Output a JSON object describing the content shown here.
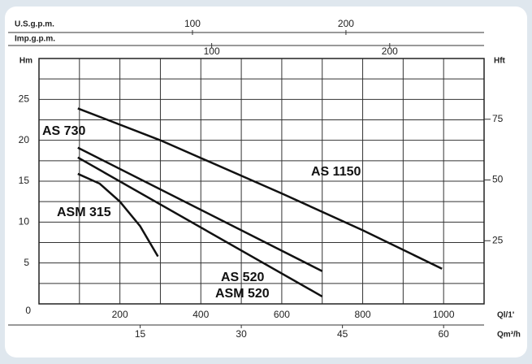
{
  "chart_data": {
    "type": "line",
    "series": [
      {
        "name": "AS 1150",
        "color": "#111111",
        "x": [
          96,
          300,
          600,
          800,
          996
        ],
        "values": [
          23.9,
          20.0,
          13.5,
          9.0,
          4.3
        ]
      },
      {
        "name": "AS 730",
        "color": "#111111",
        "x": [
          96,
          700
        ],
        "values": [
          19.1,
          4.0
        ]
      },
      {
        "name": "AS 520",
        "color": "#111111",
        "x": [
          96,
          700
        ],
        "values": [
          17.9,
          0.9
        ]
      },
      {
        "name": "ASM 315",
        "color": "#111111",
        "x": [
          96,
          150,
          200,
          250,
          294
        ],
        "values": [
          15.9,
          14.7,
          12.5,
          9.5,
          5.8
        ]
      }
    ],
    "extra_label": "ASM 520",
    "xlim": [
      0,
      1100
    ],
    "xticks": [
      200,
      400,
      600,
      800,
      1000
    ],
    "x_label": "Ql/1'",
    "xgrid": [
      100,
      300,
      500,
      700,
      900
    ],
    "ylim": [
      0,
      30
    ],
    "yticks": [
      0,
      5,
      10,
      15,
      20,
      25
    ],
    "y_label": "Hm",
    "ygrid": [
      2.5,
      7.5,
      12.5,
      17.5,
      22.5,
      27.5
    ],
    "y2lim": [
      -1,
      100
    ],
    "y2ticks": [
      25,
      50,
      75
    ],
    "y2_label": "Hft",
    "top_axes": [
      {
        "label": "U.S.g.p.m.",
        "xlim": [
          0,
          290
        ],
        "xticks": [
          100,
          200
        ]
      },
      {
        "label": "Imp.g.p.m.",
        "xlim": [
          3,
          253
        ],
        "xticks": [
          100,
          200
        ]
      }
    ],
    "bottom_axis2": {
      "label": "Qm³/h",
      "xlim": [
        0,
        66
      ],
      "xticks": [
        15,
        30,
        45,
        60
      ]
    },
    "grid": true
  }
}
